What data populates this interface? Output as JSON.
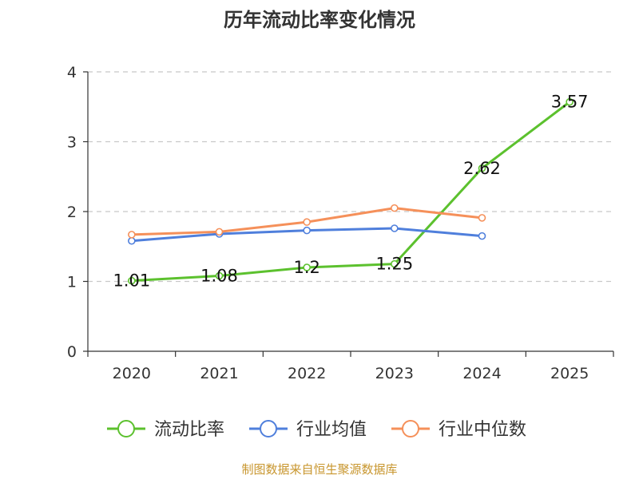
{
  "source": "制图数据来自恒生聚源数据库",
  "colors": {
    "current_ratio": "#5cc12e",
    "industry_avg": "#4f7fdc",
    "industry_median": "#f5905a",
    "axis": "#333333",
    "grid": "#c8c8c8",
    "source_text": "#c8962e"
  },
  "chart_data": {
    "type": "line",
    "title": "历年流动比率变化情况",
    "xlabel": "",
    "ylabel": "",
    "categories": [
      "2020",
      "2021",
      "2022",
      "2023",
      "2024",
      "2025"
    ],
    "ylim": [
      0,
      4
    ],
    "yticks": [
      0,
      1,
      2,
      3,
      4
    ],
    "grid": true,
    "legend_position": "bottom-center",
    "series": [
      {
        "name": "流动比率",
        "color_key": "current_ratio",
        "values": [
          1.01,
          1.08,
          1.2,
          1.25,
          2.62,
          3.57
        ],
        "labels": [
          "1.01",
          "1.08",
          "1.2",
          "1.25",
          "2.62",
          "3.57"
        ],
        "show_labels": true
      },
      {
        "name": "行业均值",
        "color_key": "industry_avg",
        "values": [
          1.58,
          1.68,
          1.73,
          1.76,
          1.65,
          null
        ],
        "show_labels": false
      },
      {
        "name": "行业中位数",
        "color_key": "industry_median",
        "values": [
          1.67,
          1.71,
          1.85,
          2.05,
          1.91,
          null
        ],
        "show_labels": false
      }
    ]
  }
}
